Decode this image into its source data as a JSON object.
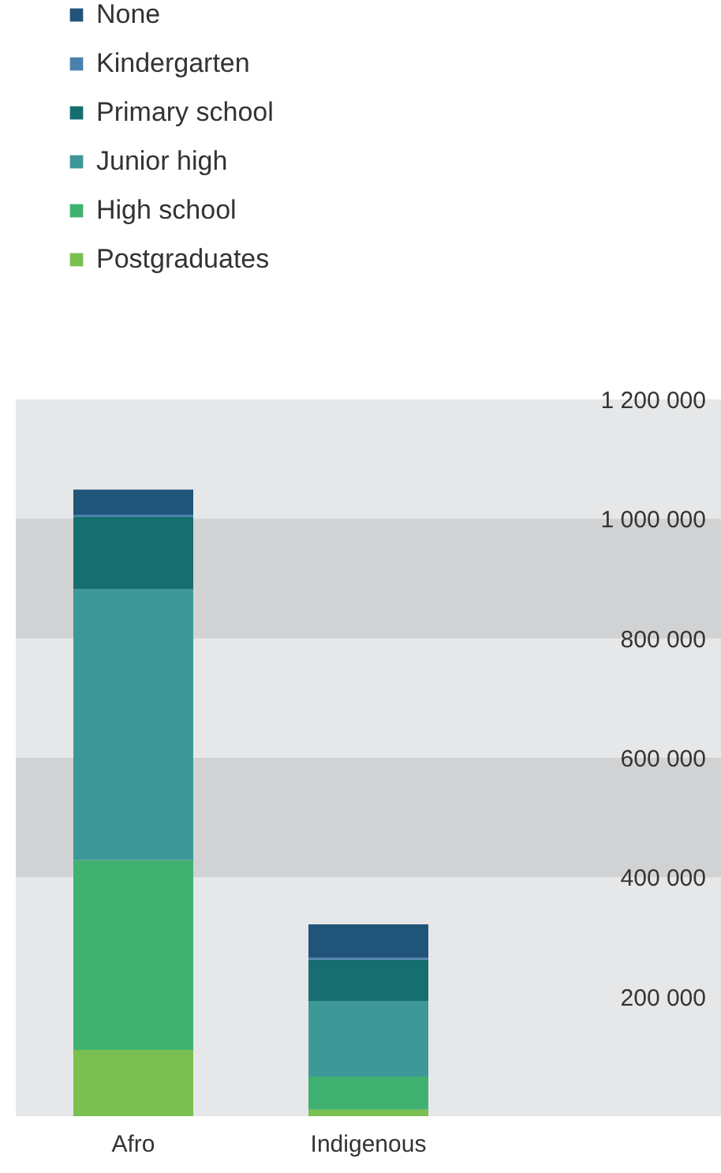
{
  "chart_data": {
    "type": "bar",
    "stacked": true,
    "categories": [
      "Afro",
      "Indigenous"
    ],
    "series": [
      {
        "name": "Postgraduates",
        "color": "#7abf50",
        "values": [
          111000,
          11000
        ]
      },
      {
        "name": "High school",
        "color": "#40b170",
        "values": [
          318000,
          55000
        ]
      },
      {
        "name": "Junior high",
        "color": "#3e9898",
        "values": [
          453000,
          127000
        ]
      },
      {
        "name": "Primary school",
        "color": "#176e70",
        "values": [
          122000,
          69000
        ]
      },
      {
        "name": "Kindergarten",
        "color": "#4a7fb0",
        "values": [
          3000,
          3000
        ]
      },
      {
        "name": "None",
        "color": "#215479",
        "values": [
          42000,
          56000
        ]
      }
    ],
    "ylim": [
      0,
      1200000
    ],
    "yticks": [
      {
        "value": 200000,
        "label": "200 000"
      },
      {
        "value": 400000,
        "label": "400 000"
      },
      {
        "value": 600000,
        "label": "600 000"
      },
      {
        "value": 800000,
        "label": "800 000"
      },
      {
        "value": 1000000,
        "label": "1 000 000"
      },
      {
        "value": 1200000,
        "label": "1 200 000"
      }
    ],
    "bands": [
      {
        "axis": "y",
        "from": 400000,
        "to": 600000,
        "color": "#d1d2d4"
      },
      {
        "axis": "y",
        "from": 800000,
        "to": 1000000,
        "color": "#d1d2d4"
      }
    ],
    "legend": "top left"
  }
}
